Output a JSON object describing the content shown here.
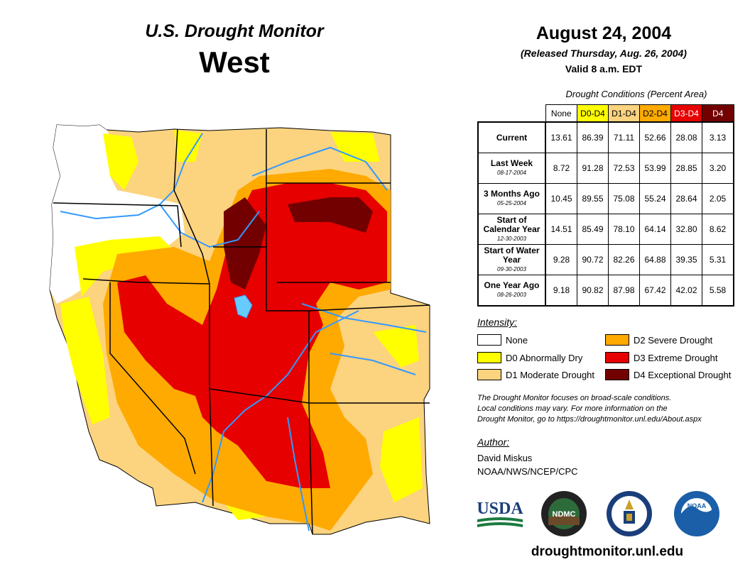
{
  "header": {
    "title_line1": "U.S. Drought Monitor",
    "title_line2": "West",
    "date": "August 24, 2004",
    "released": "(Released Thursday, Aug. 26, 2004)",
    "valid": "Valid 8 a.m. EDT"
  },
  "table": {
    "caption": "Drought Conditions (Percent Area)",
    "columns": [
      {
        "label": "None",
        "color": "#ffffff"
      },
      {
        "label": "D0-D4",
        "color": "#ffff00"
      },
      {
        "label": "D1-D4",
        "color": "#fcd37f"
      },
      {
        "label": "D2-D4",
        "color": "#ffaa00"
      },
      {
        "label": "D3-D4",
        "color": "#e60000"
      },
      {
        "label": "D4",
        "color": "#730000"
      }
    ],
    "rows": [
      {
        "label": "Current",
        "date": "",
        "values": [
          "13.61",
          "86.39",
          "71.11",
          "52.66",
          "28.08",
          "3.13"
        ]
      },
      {
        "label": "Last Week",
        "date": "08-17-2004",
        "values": [
          "8.72",
          "91.28",
          "72.53",
          "53.99",
          "28.85",
          "3.20"
        ]
      },
      {
        "label": "3 Months Ago",
        "date": "05-25-2004",
        "values": [
          "10.45",
          "89.55",
          "75.08",
          "55.24",
          "28.64",
          "2.05"
        ]
      },
      {
        "label": "Start of Calendar Year",
        "date": "12-30-2003",
        "values": [
          "14.51",
          "85.49",
          "78.10",
          "64.14",
          "32.80",
          "8.62"
        ]
      },
      {
        "label": "Start of Water Year",
        "date": "09-30-2003",
        "values": [
          "9.28",
          "90.72",
          "82.26",
          "64.88",
          "39.35",
          "5.31"
        ]
      },
      {
        "label": "One Year Ago",
        "date": "08-26-2003",
        "values": [
          "9.18",
          "90.82",
          "87.98",
          "67.42",
          "42.02",
          "5.58"
        ]
      }
    ]
  },
  "legend": {
    "title": "Intensity:",
    "items": [
      {
        "label": "None",
        "color": "#ffffff"
      },
      {
        "label": "D0 Abnormally Dry",
        "color": "#ffff00"
      },
      {
        "label": "D1 Moderate Drought",
        "color": "#fcd37f"
      },
      {
        "label": "D2 Severe Drought",
        "color": "#ffaa00"
      },
      {
        "label": "D3 Extreme Drought",
        "color": "#e60000"
      },
      {
        "label": "D4 Exceptional Drought",
        "color": "#730000"
      }
    ]
  },
  "note": {
    "line1": "The Drought Monitor focuses on broad-scale conditions.",
    "line2": "Local conditions may vary. For more information on the",
    "line3": "Drought Monitor, go to https://droughtmonitor.unl.edu/About.aspx"
  },
  "author": {
    "label": "Author:",
    "name": "David Miskus",
    "org": "NOAA/NWS/NCEP/CPC"
  },
  "logos": {
    "usda": "USDA",
    "ndmc": "NDMC",
    "noaa": "NOAA"
  },
  "website": "droughtmonitor.unl.edu",
  "colors": {
    "river": "#3399ff",
    "lake": "#66ccff"
  }
}
